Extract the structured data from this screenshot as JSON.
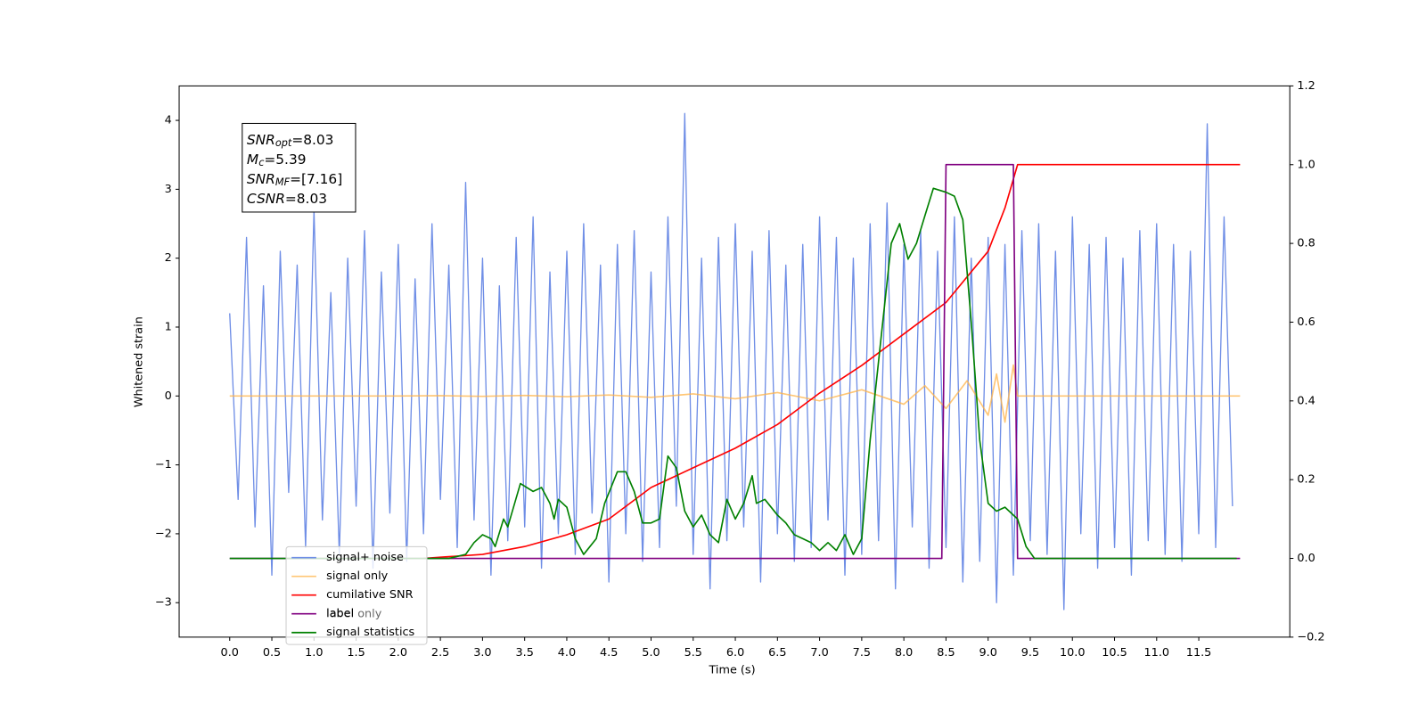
{
  "chart_data": {
    "type": "line",
    "xlabel": "Time (s)",
    "ylabel": "Whitened strain",
    "xlim": [
      -0.6,
      12.58
    ],
    "ylim": [
      -3.5,
      4.5
    ],
    "y2lim": [
      -0.2,
      1.2
    ],
    "xticks": [
      {
        "value": 0,
        "label": "0.0"
      },
      0.5,
      {
        "value": 1,
        "label": "1.0"
      },
      1.5,
      {
        "value": 2,
        "label": "2.0"
      },
      2.5,
      {
        "value": 3,
        "label": "3.0"
      },
      3.5,
      {
        "value": 4,
        "label": "4.0"
      },
      4.5,
      {
        "value": 5,
        "label": "5.0"
      },
      5.5,
      {
        "value": 6,
        "label": "6.0"
      },
      6.5,
      {
        "value": 7,
        "label": "7.0"
      },
      7.5,
      {
        "value": 8,
        "label": "8.0"
      },
      8.5,
      {
        "value": 9,
        "label": "9.0"
      },
      9.5,
      {
        "value": 10,
        "label": "10.0"
      },
      10.5,
      {
        "value": 11,
        "label": "11.0"
      },
      11.5
    ],
    "yticks": [
      {
        "value": -3,
        "label": "−3"
      },
      {
        "value": -2,
        "label": "−2"
      },
      {
        "value": -1,
        "label": "−1"
      },
      0,
      1,
      2,
      3,
      4
    ],
    "y2ticks": [
      {
        "value": -0.2,
        "label": "−0.2"
      },
      {
        "value": 0,
        "label": "0.0"
      },
      0.2,
      0.4,
      0.6,
      0.8,
      {
        "value": 1,
        "label": "1.0"
      },
      1.2
    ],
    "annotation": [
      {
        "symbol": "SNR",
        "subscript": "opt",
        "text": "=8.03"
      },
      {
        "symbol": "M",
        "subscript": "c",
        "text": "=5.39"
      },
      {
        "symbol": "SNR",
        "subscript": "MF",
        "text": "=[7.16]"
      },
      {
        "symbol": "CSNR",
        "text": "=8.03"
      }
    ],
    "hidden_legend_entry": "label only",
    "series": [
      {
        "name": "signal+ noise",
        "color": "#6f8ee6",
        "x": [
          0,
          0.1,
          0.2,
          0.3,
          0.4,
          0.5,
          0.6,
          0.7,
          0.8,
          0.9,
          1,
          1.1,
          1.2,
          1.3,
          1.4,
          1.5,
          1.6,
          1.7,
          1.8,
          1.9,
          2,
          2.1,
          2.2,
          2.3,
          2.4,
          2.5,
          2.6,
          2.7,
          2.8,
          2.9,
          3,
          3.1,
          3.2,
          3.3,
          3.4,
          3.5,
          3.6,
          3.7,
          3.8,
          3.9,
          4,
          4.1,
          4.2,
          4.3,
          4.4,
          4.5,
          4.6,
          4.7,
          4.8,
          4.9,
          5,
          5.1,
          5.2,
          5.3,
          5.4,
          5.5,
          5.6,
          5.7,
          5.8,
          5.9,
          6,
          6.1,
          6.2,
          6.3,
          6.4,
          6.5,
          6.6,
          6.7,
          6.8,
          6.9,
          7,
          7.1,
          7.2,
          7.3,
          7.4,
          7.5,
          7.6,
          7.7,
          7.8,
          7.9,
          8,
          8.1,
          8.2,
          8.3,
          8.4,
          8.5,
          8.6,
          8.7,
          8.8,
          8.9,
          9,
          9.1,
          9.2,
          9.3,
          9.4,
          9.5,
          9.6,
          9.7,
          9.8,
          9.9,
          10,
          10.1,
          10.2,
          10.3,
          10.4,
          10.5,
          10.6,
          10.7,
          10.8,
          10.9,
          11,
          11.1,
          11.2,
          11.3,
          11.4,
          11.5,
          11.6,
          11.7,
          11.8,
          11.9
        ],
        "values": [
          1.2,
          -1.5,
          2.3,
          -1.9,
          1.6,
          -2.6,
          2.1,
          -1.4,
          1.9,
          -2.2,
          2.7,
          -1.8,
          1.5,
          -2.3,
          2.0,
          -1.6,
          2.4,
          -2.5,
          1.8,
          -1.7,
          2.2,
          -2.4,
          1.7,
          -2.0,
          2.5,
          -1.5,
          1.9,
          -2.2,
          3.1,
          -1.8,
          2.0,
          -2.6,
          1.6,
          -2.1,
          2.3,
          -1.9,
          2.6,
          -2.5,
          1.8,
          -2.0,
          2.1,
          -2.3,
          2.5,
          -1.7,
          1.9,
          -2.7,
          2.2,
          -2.0,
          2.4,
          -2.4,
          1.8,
          -2.2,
          2.6,
          -1.6,
          4.1,
          -2.3,
          2.0,
          -2.8,
          2.3,
          -2.1,
          2.5,
          -1.9,
          2.1,
          -2.7,
          2.4,
          -2.0,
          1.9,
          -2.4,
          2.2,
          -2.2,
          2.6,
          -1.8,
          2.3,
          -2.6,
          2.0,
          -2.3,
          2.5,
          -2.1,
          2.8,
          -2.8,
          2.2,
          -1.9,
          2.4,
          -2.5,
          2.1,
          -2.2,
          2.6,
          -2.7,
          2.0,
          -2.4,
          2.3,
          -3.0,
          2.2,
          -2.6,
          2.4,
          -2.1,
          2.5,
          -2.3,
          2.1,
          -3.1,
          2.6,
          -2.0,
          2.2,
          -2.5,
          2.3,
          -2.2,
          2.0,
          -2.6,
          2.4,
          -2.1,
          2.5,
          -2.3,
          2.2,
          -2.4,
          2.1,
          -2.0,
          3.95,
          -2.2,
          2.6,
          -1.6
        ]
      },
      {
        "name": "signal only",
        "color": "#ffb347",
        "x": [
          0,
          2,
          2.5,
          3,
          3.5,
          4,
          4.5,
          5,
          5.5,
          6,
          6.5,
          7,
          7.5,
          8,
          8.25,
          8.5,
          8.75,
          9,
          9.1,
          9.2,
          9.3,
          9.35,
          11.99
        ],
        "values": [
          0,
          0,
          0.005,
          -0.006,
          0.008,
          -0.01,
          0.015,
          -0.02,
          0.03,
          -0.04,
          0.05,
          -0.07,
          0.09,
          -0.12,
          0.15,
          -0.18,
          0.22,
          -0.28,
          0.32,
          -0.38,
          0.45,
          0,
          0
        ]
      },
      {
        "name": "cumilative SNR",
        "color": "#ff0000",
        "axis": "y2",
        "x": [
          2.3,
          2.5,
          3,
          3.5,
          4,
          4.5,
          5,
          5.5,
          6,
          6.5,
          7,
          7.5,
          8,
          8.5,
          9,
          9.2,
          9.35,
          11.99
        ],
        "values": [
          0,
          0.003,
          0.01,
          0.03,
          0.06,
          0.1,
          0.18,
          0.23,
          0.28,
          0.34,
          0.42,
          0.49,
          0.57,
          0.65,
          0.78,
          0.89,
          1,
          1
        ]
      },
      {
        "name": "label",
        "color": "#800080",
        "axis": "y2",
        "x": [
          0,
          8.45,
          8.5,
          9.3,
          9.35,
          11.99
        ],
        "values": [
          0,
          0,
          1,
          1,
          0,
          0
        ]
      },
      {
        "name": "signal statistics",
        "color": "#008000",
        "axis": "y2",
        "x": [
          0,
          2.6,
          2.8,
          2.9,
          3,
          3.1,
          3.15,
          3.25,
          3.3,
          3.45,
          3.6,
          3.7,
          3.8,
          3.85,
          3.9,
          4,
          4.1,
          4.2,
          4.35,
          4.45,
          4.6,
          4.7,
          4.8,
          4.9,
          5,
          5.1,
          5.2,
          5.3,
          5.4,
          5.5,
          5.6,
          5.7,
          5.8,
          5.9,
          6,
          6.1,
          6.2,
          6.25,
          6.35,
          6.5,
          6.6,
          6.7,
          6.8,
          6.9,
          7,
          7.1,
          7.2,
          7.3,
          7.4,
          7.5,
          7.6,
          7.75,
          7.85,
          7.95,
          8.05,
          8.15,
          8.25,
          8.35,
          8.5,
          8.6,
          8.7,
          8.8,
          8.9,
          9,
          9.1,
          9.2,
          9.35,
          9.45,
          9.55,
          11.95
        ],
        "values": [
          0,
          0,
          0.01,
          0.04,
          0.06,
          0.05,
          0.03,
          0.1,
          0.08,
          0.19,
          0.17,
          0.18,
          0.14,
          0.1,
          0.15,
          0.13,
          0.05,
          0.01,
          0.05,
          0.14,
          0.22,
          0.22,
          0.17,
          0.09,
          0.09,
          0.1,
          0.26,
          0.23,
          0.12,
          0.08,
          0.11,
          0.06,
          0.04,
          0.15,
          0.1,
          0.14,
          0.21,
          0.14,
          0.15,
          0.11,
          0.09,
          0.06,
          0.05,
          0.04,
          0.02,
          0.04,
          0.02,
          0.06,
          0.01,
          0.05,
          0.3,
          0.6,
          0.8,
          0.85,
          0.76,
          0.8,
          0.87,
          0.94,
          0.93,
          0.92,
          0.86,
          0.6,
          0.3,
          0.14,
          0.12,
          0.13,
          0.1,
          0.03,
          0,
          0
        ]
      }
    ]
  }
}
